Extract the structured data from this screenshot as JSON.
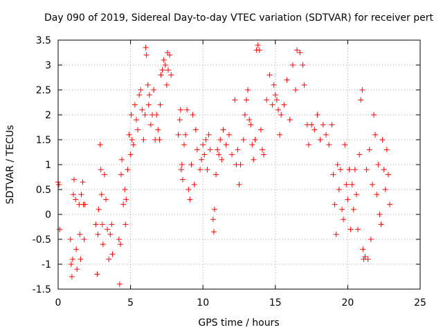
{
  "chart_data": {
    "type": "scatter",
    "title": "Day 090 of 2019, Sidereal Day-to-day VTEC variation (SDTVAR) for receiver pert",
    "xlabel": "GPS time / hours",
    "ylabel": "SDTVAR / TECUs",
    "xlim": [
      0,
      25
    ],
    "ylim": [
      -1.5,
      3.5
    ],
    "xticks": [
      0,
      5,
      10,
      15,
      20,
      25
    ],
    "xtick_labels": [
      "0",
      "5",
      "10",
      "15",
      "20",
      "25"
    ],
    "yticks": [
      -1.5,
      -1,
      -0.5,
      0,
      0.5,
      1,
      1.5,
      2,
      2.5,
      3,
      3.5
    ],
    "ytick_labels": [
      "-1.5",
      "-1",
      "-0.5",
      "0",
      "0.5",
      "1",
      "1.5",
      "2",
      "2.5",
      "3",
      "3.5"
    ],
    "grid": true,
    "marker": "+",
    "series": [
      {
        "name": "SDTVAR",
        "color": "#ff0000",
        "points": [
          [
            0.0,
            0.65
          ],
          [
            0.05,
            0.6
          ],
          [
            0.1,
            -0.3
          ],
          [
            0.85,
            -0.5
          ],
          [
            0.9,
            -1.0
          ],
          [
            0.95,
            -1.25
          ],
          [
            1.0,
            -0.9
          ],
          [
            1.05,
            0.4
          ],
          [
            1.1,
            0.7
          ],
          [
            1.2,
            0.3
          ],
          [
            1.25,
            -0.7
          ],
          [
            1.3,
            -1.1
          ],
          [
            1.45,
            0.2
          ],
          [
            1.5,
            -0.4
          ],
          [
            1.55,
            -0.9
          ],
          [
            1.6,
            0.4
          ],
          [
            1.7,
            0.65
          ],
          [
            1.75,
            0.2
          ],
          [
            1.8,
            -0.5
          ],
          [
            1.85,
            0.2
          ],
          [
            2.6,
            -0.2
          ],
          [
            2.7,
            -1.2
          ],
          [
            2.75,
            -0.4
          ],
          [
            2.8,
            0.1
          ],
          [
            2.9,
            1.4
          ],
          [
            2.95,
            0.9
          ],
          [
            3.0,
            0.4
          ],
          [
            3.05,
            -0.2
          ],
          [
            3.1,
            -0.6
          ],
          [
            3.2,
            0.8
          ],
          [
            3.3,
            0.3
          ],
          [
            3.4,
            -0.3
          ],
          [
            3.5,
            -0.9
          ],
          [
            3.6,
            -0.4
          ],
          [
            3.7,
            -0.2
          ],
          [
            3.75,
            -0.8
          ],
          [
            4.2,
            -0.5
          ],
          [
            4.25,
            -1.4
          ],
          [
            4.3,
            -0.6
          ],
          [
            4.35,
            0.8
          ],
          [
            4.4,
            1.1
          ],
          [
            4.5,
            0.2
          ],
          [
            4.6,
            0.5
          ],
          [
            4.65,
            -0.2
          ],
          [
            4.7,
            0.3
          ],
          [
            4.8,
            0.9
          ],
          [
            4.9,
            1.6
          ],
          [
            5.0,
            1.2
          ],
          [
            5.05,
            2.0
          ],
          [
            5.1,
            1.5
          ],
          [
            5.2,
            1.4
          ],
          [
            5.3,
            2.2
          ],
          [
            5.4,
            1.9
          ],
          [
            5.5,
            1.7
          ],
          [
            5.6,
            2.4
          ],
          [
            5.7,
            2.5
          ],
          [
            5.8,
            2.1
          ],
          [
            5.9,
            1.5
          ],
          [
            6.0,
            2.0
          ],
          [
            6.05,
            3.35
          ],
          [
            6.1,
            3.2
          ],
          [
            6.2,
            2.6
          ],
          [
            6.25,
            2.2
          ],
          [
            6.3,
            2.4
          ],
          [
            6.4,
            1.8
          ],
          [
            6.5,
            2.0
          ],
          [
            6.6,
            2.5
          ],
          [
            6.7,
            1.5
          ],
          [
            6.8,
            2.0
          ],
          [
            6.9,
            1.7
          ],
          [
            7.0,
            1.5
          ],
          [
            7.05,
            2.2
          ],
          [
            7.1,
            2.8
          ],
          [
            7.2,
            2.9
          ],
          [
            7.3,
            3.1
          ],
          [
            7.4,
            3.0
          ],
          [
            7.5,
            2.6
          ],
          [
            7.55,
            3.25
          ],
          [
            7.6,
            2.9
          ],
          [
            7.7,
            3.2
          ],
          [
            7.8,
            2.8
          ],
          [
            8.3,
            1.6
          ],
          [
            8.4,
            1.9
          ],
          [
            8.45,
            2.1
          ],
          [
            8.5,
            0.9
          ],
          [
            8.55,
            1.0
          ],
          [
            8.6,
            0.7
          ],
          [
            8.7,
            1.4
          ],
          [
            8.8,
            1.6
          ],
          [
            8.9,
            2.1
          ],
          [
            9.0,
            0.5
          ],
          [
            9.1,
            0.3
          ],
          [
            9.2,
            1.0
          ],
          [
            9.3,
            2.0
          ],
          [
            9.4,
            0.6
          ],
          [
            9.5,
            1.7
          ],
          [
            9.6,
            1.3
          ],
          [
            9.8,
            0.9
          ],
          [
            9.9,
            1.1
          ],
          [
            10.0,
            1.4
          ],
          [
            10.1,
            1.2
          ],
          [
            10.2,
            1.5
          ],
          [
            10.3,
            0.9
          ],
          [
            10.4,
            1.6
          ],
          [
            10.5,
            1.3
          ],
          [
            10.7,
            -0.1
          ],
          [
            10.75,
            -0.35
          ],
          [
            10.8,
            0.1
          ],
          [
            10.9,
            0.8
          ],
          [
            11.0,
            1.3
          ],
          [
            11.1,
            1.2
          ],
          [
            11.2,
            1.5
          ],
          [
            11.3,
            1.1
          ],
          [
            11.4,
            1.7
          ],
          [
            11.6,
            1.4
          ],
          [
            11.8,
            1.6
          ],
          [
            12.0,
            1.2
          ],
          [
            12.2,
            2.3
          ],
          [
            12.3,
            1.0
          ],
          [
            12.4,
            1.3
          ],
          [
            12.5,
            0.6
          ],
          [
            12.6,
            1.0
          ],
          [
            12.8,
            1.5
          ],
          [
            12.9,
            2.0
          ],
          [
            13.0,
            2.3
          ],
          [
            13.1,
            2.5
          ],
          [
            13.2,
            1.9
          ],
          [
            13.3,
            1.8
          ],
          [
            13.4,
            1.4
          ],
          [
            13.5,
            1.1
          ],
          [
            13.6,
            1.5
          ],
          [
            13.7,
            3.3
          ],
          [
            13.8,
            3.4
          ],
          [
            13.9,
            3.3
          ],
          [
            14.0,
            1.7
          ],
          [
            14.1,
            1.3
          ],
          [
            14.2,
            1.2
          ],
          [
            14.4,
            2.3
          ],
          [
            14.6,
            2.8
          ],
          [
            14.8,
            2.2
          ],
          [
            14.9,
            2.6
          ],
          [
            15.0,
            2.4
          ],
          [
            15.1,
            2.3
          ],
          [
            15.2,
            2.1
          ],
          [
            15.3,
            1.6
          ],
          [
            15.4,
            2.0
          ],
          [
            15.6,
            2.2
          ],
          [
            15.8,
            2.7
          ],
          [
            16.0,
            1.9
          ],
          [
            16.2,
            3.0
          ],
          [
            16.4,
            2.5
          ],
          [
            16.5,
            3.3
          ],
          [
            16.7,
            3.25
          ],
          [
            16.9,
            3.0
          ],
          [
            17.0,
            2.6
          ],
          [
            17.2,
            1.8
          ],
          [
            17.3,
            1.4
          ],
          [
            17.5,
            1.8
          ],
          [
            17.7,
            1.7
          ],
          [
            17.9,
            2.0
          ],
          [
            18.1,
            1.5
          ],
          [
            18.3,
            1.8
          ],
          [
            18.5,
            1.6
          ],
          [
            18.7,
            1.4
          ],
          [
            18.9,
            1.8
          ],
          [
            19.0,
            0.8
          ],
          [
            19.1,
            0.2
          ],
          [
            19.2,
            -0.4
          ],
          [
            19.3,
            1.0
          ],
          [
            19.4,
            0.5
          ],
          [
            19.5,
            0.9
          ],
          [
            19.6,
            0.1
          ],
          [
            19.7,
            -0.1
          ],
          [
            19.8,
            1.4
          ],
          [
            19.9,
            0.6
          ],
          [
            20.0,
            0.3
          ],
          [
            20.1,
            0.9
          ],
          [
            20.2,
            -0.3
          ],
          [
            20.3,
            0.6
          ],
          [
            20.4,
            0.1
          ],
          [
            20.5,
            0.9
          ],
          [
            20.6,
            0.4
          ],
          [
            20.7,
            -0.3
          ],
          [
            20.8,
            1.2
          ],
          [
            20.9,
            2.3
          ],
          [
            21.0,
            2.5
          ],
          [
            21.05,
            -0.7
          ],
          [
            21.1,
            -0.9
          ],
          [
            21.2,
            -0.85
          ],
          [
            21.3,
            0.9
          ],
          [
            21.4,
            -0.9
          ],
          [
            21.5,
            1.3
          ],
          [
            21.6,
            -0.5
          ],
          [
            21.7,
            0.6
          ],
          [
            21.8,
            2.0
          ],
          [
            21.9,
            1.6
          ],
          [
            22.0,
            0.4
          ],
          [
            22.1,
            1.0
          ],
          [
            22.2,
            0.0
          ],
          [
            22.3,
            -0.2
          ],
          [
            22.4,
            1.5
          ],
          [
            22.5,
            0.9
          ],
          [
            22.6,
            0.5
          ],
          [
            22.7,
            1.3
          ],
          [
            22.8,
            0.8
          ],
          [
            22.9,
            0.2
          ]
        ]
      }
    ]
  }
}
